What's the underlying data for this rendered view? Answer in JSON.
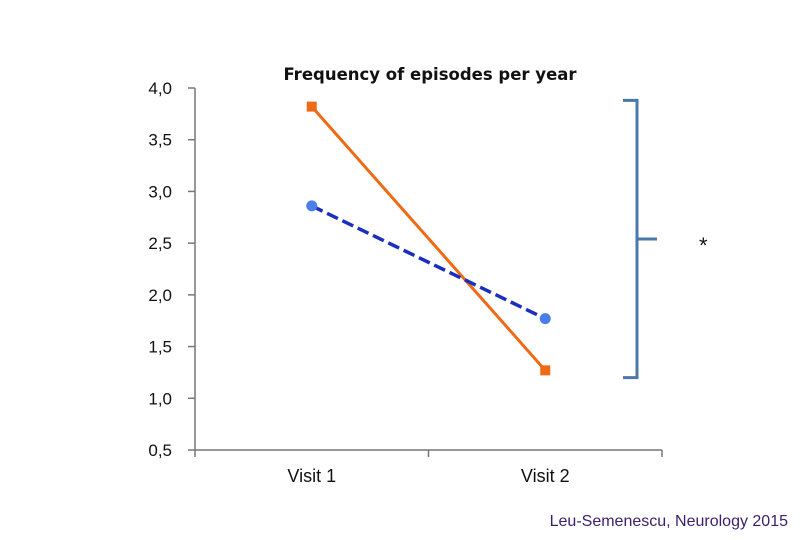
{
  "chart_data": {
    "type": "line",
    "title": "Frequency of episodes per year",
    "categories": [
      "Visit 1",
      "Visit 2"
    ],
    "ylim": [
      0.5,
      4.0
    ],
    "yticks": [
      "0,5",
      "1,0",
      "1,5",
      "2,0",
      "2,5",
      "3,0",
      "3,5",
      "4,0"
    ],
    "ytick_values": [
      0.5,
      1.0,
      1.5,
      2.0,
      2.5,
      3.0,
      3.5,
      4.0
    ],
    "grid": false,
    "series": [
      {
        "values": [
          3.82,
          1.27
        ],
        "color": "#ee6a14",
        "marker": "square",
        "dash": "solid"
      },
      {
        "values": [
          2.86,
          1.77
        ],
        "color": "#1a2fc0",
        "marker_color": "#4a7ee8",
        "marker": "circle",
        "dash": "dashed"
      }
    ],
    "annotation": {
      "text": "*",
      "bracket_from": 3.88,
      "bracket_to": 1.2,
      "color": "#4a78a8"
    }
  },
  "citation": "Leu-Semenescu, Neurology 2015"
}
